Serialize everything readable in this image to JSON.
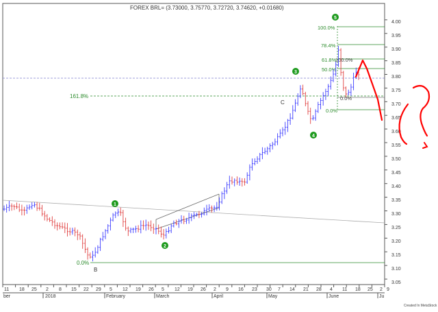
{
  "chart_data": {
    "type": "ohlc",
    "title": "FOREX BRL= (3.73000, 3.75770, 3.72720, 3.74620, +0.01680)",
    "credit": "Created In MetaStock",
    "ylim": [
      3.03,
      4.06
    ],
    "ytick_labels": [
      "3.05",
      "3.10",
      "3.15",
      "3.20",
      "3.25",
      "3.30",
      "3.35",
      "3.40",
      "3.45",
      "3.50",
      "3.55",
      "3.60",
      "3.65",
      "3.70",
      "3.75",
      "3.80",
      "3.85",
      "3.90",
      "3.95",
      "4.00"
    ],
    "x_day_labels": [
      "11",
      "18",
      "25",
      "2",
      "8",
      "15",
      "22",
      "29",
      "5",
      "12",
      "19",
      "26",
      "5",
      "12",
      "19",
      "26",
      "2",
      "9",
      "16",
      "23",
      "30",
      "7",
      "14",
      "21",
      "28",
      "4",
      "11",
      "18",
      "25",
      "2",
      "9"
    ],
    "x_month_labels": [
      "ber",
      "2018",
      "February",
      "March",
      "April",
      "May",
      "June",
      "Ju"
    ],
    "wave_labels": [
      "1",
      "2",
      "3",
      "4",
      "5"
    ],
    "letter_labels": [
      "B",
      "C"
    ],
    "fib_labels": [
      "161.8%",
      "0.0%",
      "100.0%",
      "78.4%",
      "61.8%",
      "50.0%",
      "100.0%",
      "0.0%",
      "0.0%"
    ],
    "colors": {
      "up": "#3a3aff",
      "down": "#e04040",
      "wave": "#1d9a1d",
      "fib": "#2a8a2a",
      "annot": "#ff0000"
    },
    "grid": false
  }
}
